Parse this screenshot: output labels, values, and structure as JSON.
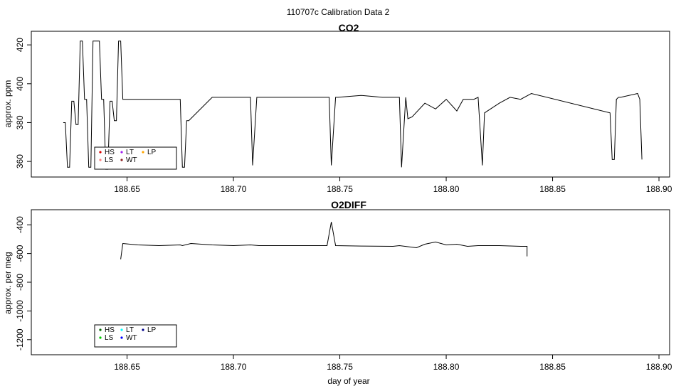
{
  "figure": {
    "suptitle": "110707c   Calibration Data 2"
  },
  "chart_data": [
    {
      "type": "line",
      "title": "CO2",
      "xlabel": "",
      "ylabel": "approx. ppm",
      "xlim": [
        188.605,
        188.905
      ],
      "ylim": [
        352,
        427
      ],
      "xticks": [
        "188.65",
        "188.70",
        "188.75",
        "188.80",
        "188.85",
        "188.90"
      ],
      "yticks": [
        "360",
        "380",
        "400",
        "420"
      ],
      "grid": false,
      "legend_position": "bottom-left",
      "legend": [
        {
          "name": "HS",
          "color": "#dd0000"
        },
        {
          "name": "LT",
          "color": "#a020f0"
        },
        {
          "name": "LP",
          "color": "#ffa500"
        },
        {
          "name": "LS",
          "color": "#ff8080"
        },
        {
          "name": "WT",
          "color": "#8b2020"
        }
      ],
      "series": [
        {
          "name": "",
          "color": "#000000",
          "x": [
            188.62,
            188.621,
            188.622,
            188.623,
            188.624,
            188.625,
            188.626,
            188.627,
            188.628,
            188.629,
            188.63,
            188.631,
            188.632,
            188.633,
            188.634,
            188.635,
            188.636,
            188.637,
            188.638,
            188.639,
            188.64,
            188.641,
            188.642,
            188.643,
            188.644,
            188.645,
            188.646,
            188.647,
            188.648,
            188.655,
            188.665,
            188.675,
            188.676,
            188.677,
            188.678,
            188.679,
            188.69,
            188.7,
            188.708,
            188.709,
            188.711,
            188.712,
            188.725,
            188.74,
            188.745,
            188.746,
            188.748,
            188.749,
            188.76,
            188.77,
            188.778,
            188.779,
            188.781,
            188.782,
            188.784,
            188.79,
            188.795,
            188.8,
            188.805,
            188.808,
            188.813,
            188.815,
            188.817,
            188.818,
            188.825,
            188.83,
            188.835,
            188.84,
            188.877,
            188.878,
            188.879,
            188.88,
            188.881,
            188.882,
            188.89,
            188.891,
            188.892
          ],
          "y": [
            380,
            380,
            357,
            357,
            391,
            391,
            379,
            379,
            422,
            422,
            392,
            392,
            357,
            357,
            422,
            422,
            422,
            422,
            392,
            392,
            356,
            356,
            391,
            391,
            381,
            381,
            422,
            422,
            392,
            392,
            392,
            392,
            357,
            357,
            381,
            381,
            393,
            393,
            393,
            358,
            393,
            393,
            393,
            393,
            393,
            358,
            393,
            393,
            394,
            393,
            393,
            357,
            393,
            382,
            383,
            390,
            387,
            392,
            386,
            392,
            392,
            393,
            358,
            385,
            390,
            393,
            392,
            395,
            385,
            361,
            361,
            392,
            393,
            393,
            395,
            392,
            361
          ]
        }
      ]
    },
    {
      "type": "line",
      "title": "O2DIFF",
      "xlabel": "day of year",
      "ylabel": "approx. per meg",
      "xlim": [
        188.605,
        188.905
      ],
      "ylim": [
        -1305,
        -295
      ],
      "xticks": [
        "188.65",
        "188.70",
        "188.75",
        "188.80",
        "188.85",
        "188.90"
      ],
      "yticks": [
        "-400",
        "-600",
        "-800",
        "-1000",
        "-1200"
      ],
      "grid": false,
      "legend_position": "bottom-left",
      "legend": [
        {
          "name": "HS",
          "color": "#006400"
        },
        {
          "name": "LT",
          "color": "#00ffff"
        },
        {
          "name": "LP",
          "color": "#00008b"
        },
        {
          "name": "LS",
          "color": "#00cc00"
        },
        {
          "name": "WT",
          "color": "#0000ff"
        }
      ],
      "series": [
        {
          "name": "",
          "color": "#000000",
          "x": [
            188.647,
            188.648,
            188.655,
            188.665,
            188.675,
            188.676,
            188.68,
            188.69,
            188.7,
            188.708,
            188.712,
            188.725,
            188.74,
            188.744,
            188.746,
            188.748,
            188.76,
            188.775,
            188.778,
            188.786,
            188.79,
            188.795,
            188.8,
            188.805,
            188.81,
            188.815,
            188.825,
            188.835,
            188.838,
            188.838
          ],
          "y": [
            -640,
            -530,
            -540,
            -545,
            -540,
            -545,
            -530,
            -540,
            -545,
            -540,
            -545,
            -545,
            -545,
            -545,
            -380,
            -545,
            -548,
            -550,
            -545,
            -560,
            -535,
            -520,
            -540,
            -535,
            -550,
            -545,
            -545,
            -550,
            -550,
            -620
          ]
        }
      ]
    }
  ]
}
